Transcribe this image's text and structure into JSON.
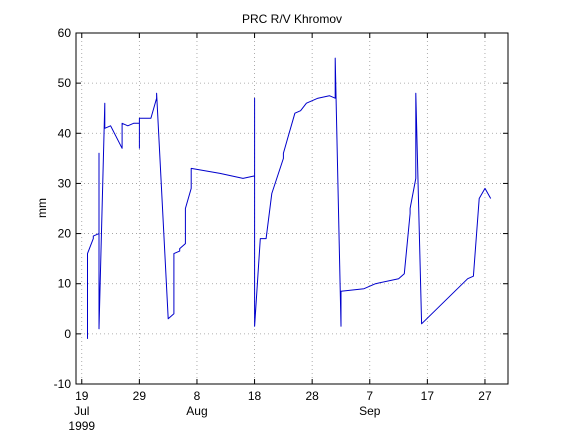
{
  "chart_data": {
    "type": "line",
    "title": "PRC R/V Khromov",
    "ylabel": "mm",
    "xlabel": "",
    "ylim": [
      -10,
      60
    ],
    "xlim": [
      "1999-07-18",
      "1999-10-01"
    ],
    "grid": true,
    "x_ticks": [
      {
        "date": "1999-07-19",
        "label": "19",
        "month": "Jul",
        "year": "1999"
      },
      {
        "date": "1999-07-29",
        "label": "29"
      },
      {
        "date": "1999-08-08",
        "label": "8",
        "month": "Aug"
      },
      {
        "date": "1999-08-18",
        "label": "18"
      },
      {
        "date": "1999-08-28",
        "label": "28"
      },
      {
        "date": "1999-09-07",
        "label": "7",
        "month": "Sep"
      },
      {
        "date": "1999-09-17",
        "label": "17"
      },
      {
        "date": "1999-09-27",
        "label": "27"
      }
    ],
    "y_ticks": [
      -10,
      0,
      10,
      20,
      30,
      40,
      50,
      60
    ],
    "series": [
      {
        "color": "#0000cc",
        "x": [
          "1999-07-20",
          "1999-07-20",
          "1999-07-21",
          "1999-07-21",
          "1999-07-22",
          "1999-07-22",
          "1999-07-22",
          "1999-07-22",
          "1999-07-23",
          "1999-07-23",
          "1999-07-23",
          "1999-07-24",
          "1999-07-24",
          "1999-07-26",
          "1999-07-26",
          "1999-07-26",
          "1999-07-27",
          "1999-07-28",
          "1999-07-29",
          "1999-07-29",
          "1999-07-29",
          "1999-07-30",
          "1999-07-31",
          "1999-08-01",
          "1999-08-01",
          "1999-08-03",
          "1999-08-04",
          "1999-08-04",
          "1999-08-05",
          "1999-08-05",
          "1999-08-06",
          "1999-08-06",
          "1999-08-07",
          "1999-08-07",
          "1999-08-12",
          "1999-08-16",
          "1999-08-18",
          "1999-08-18",
          "1999-08-18",
          "1999-08-19",
          "1999-08-20",
          "1999-08-21",
          "1999-08-23",
          "1999-08-23",
          "1999-08-24",
          "1999-08-25",
          "1999-08-26",
          "1999-08-27",
          "1999-08-29",
          "1999-08-31",
          "1999-09-01",
          "1999-09-01",
          "1999-09-02",
          "1999-09-02",
          "1999-09-06",
          "1999-09-08",
          "1999-09-12",
          "1999-09-13",
          "1999-09-14",
          "1999-09-14",
          "1999-09-15",
          "1999-09-15",
          "1999-09-15",
          "1999-09-16",
          "1999-09-24",
          "1999-09-25",
          "1999-09-26",
          "1999-09-27",
          "1999-09-28"
        ],
        "y": [
          -1,
          16,
          19,
          19.5,
          20,
          29,
          36,
          1,
          46,
          41,
          41,
          41.5,
          41.5,
          37,
          42,
          42,
          41.5,
          42,
          42,
          37,
          43,
          43,
          43,
          47,
          48,
          3,
          4,
          16,
          16.5,
          17,
          18,
          25,
          29,
          33,
          32,
          31,
          31.5,
          47,
          1.5,
          19,
          19,
          28,
          35,
          36,
          40,
          44,
          44.5,
          46,
          47,
          47.5,
          47,
          55,
          1.5,
          8.5,
          9,
          10,
          11,
          12,
          24,
          25,
          31,
          32.5,
          48,
          2,
          11,
          11.5,
          27,
          29,
          27
        ]
      }
    ]
  }
}
